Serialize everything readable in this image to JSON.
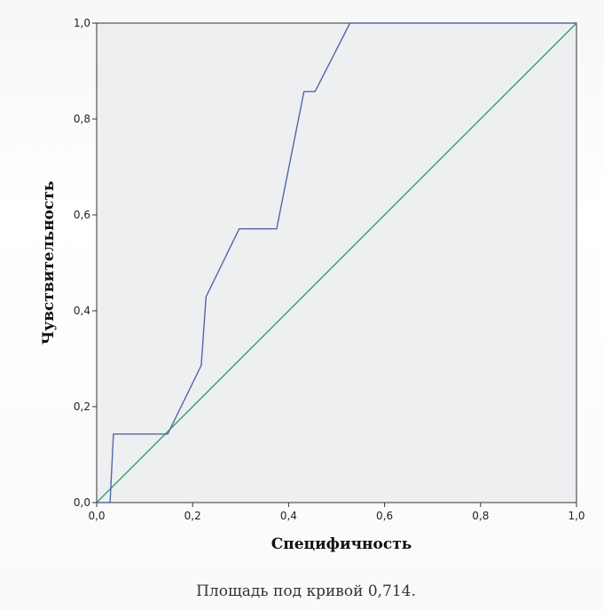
{
  "chart_data": {
    "type": "line",
    "xlabel": "Специфичность",
    "ylabel": "Чувствительность",
    "caption": "Площадь под кривой 0,714.",
    "xlim": [
      0,
      1
    ],
    "ylim": [
      0,
      1
    ],
    "x_ticks": [
      "0,0",
      "0,2",
      "0,4",
      "0,6",
      "0,8",
      "1,0"
    ],
    "y_ticks": [
      "0,0",
      "0,2",
      "0,4",
      "0,6",
      "0,8",
      "1,0"
    ],
    "grid": false,
    "legend": "none",
    "series": [
      {
        "color": "#5566aa",
        "x": [
          0.0,
          0.028,
          0.035,
          0.148,
          0.218,
          0.228,
          0.297,
          0.375,
          0.432,
          0.455,
          0.528,
          1.0
        ],
        "y": [
          0.0,
          0.0,
          0.143,
          0.143,
          0.286,
          0.429,
          0.571,
          0.571,
          0.857,
          0.857,
          1.0,
          1.0
        ]
      },
      {
        "color": "#2fa36a",
        "x": [
          0.0,
          1.0
        ],
        "y": [
          0.0,
          1.0
        ]
      }
    ]
  }
}
